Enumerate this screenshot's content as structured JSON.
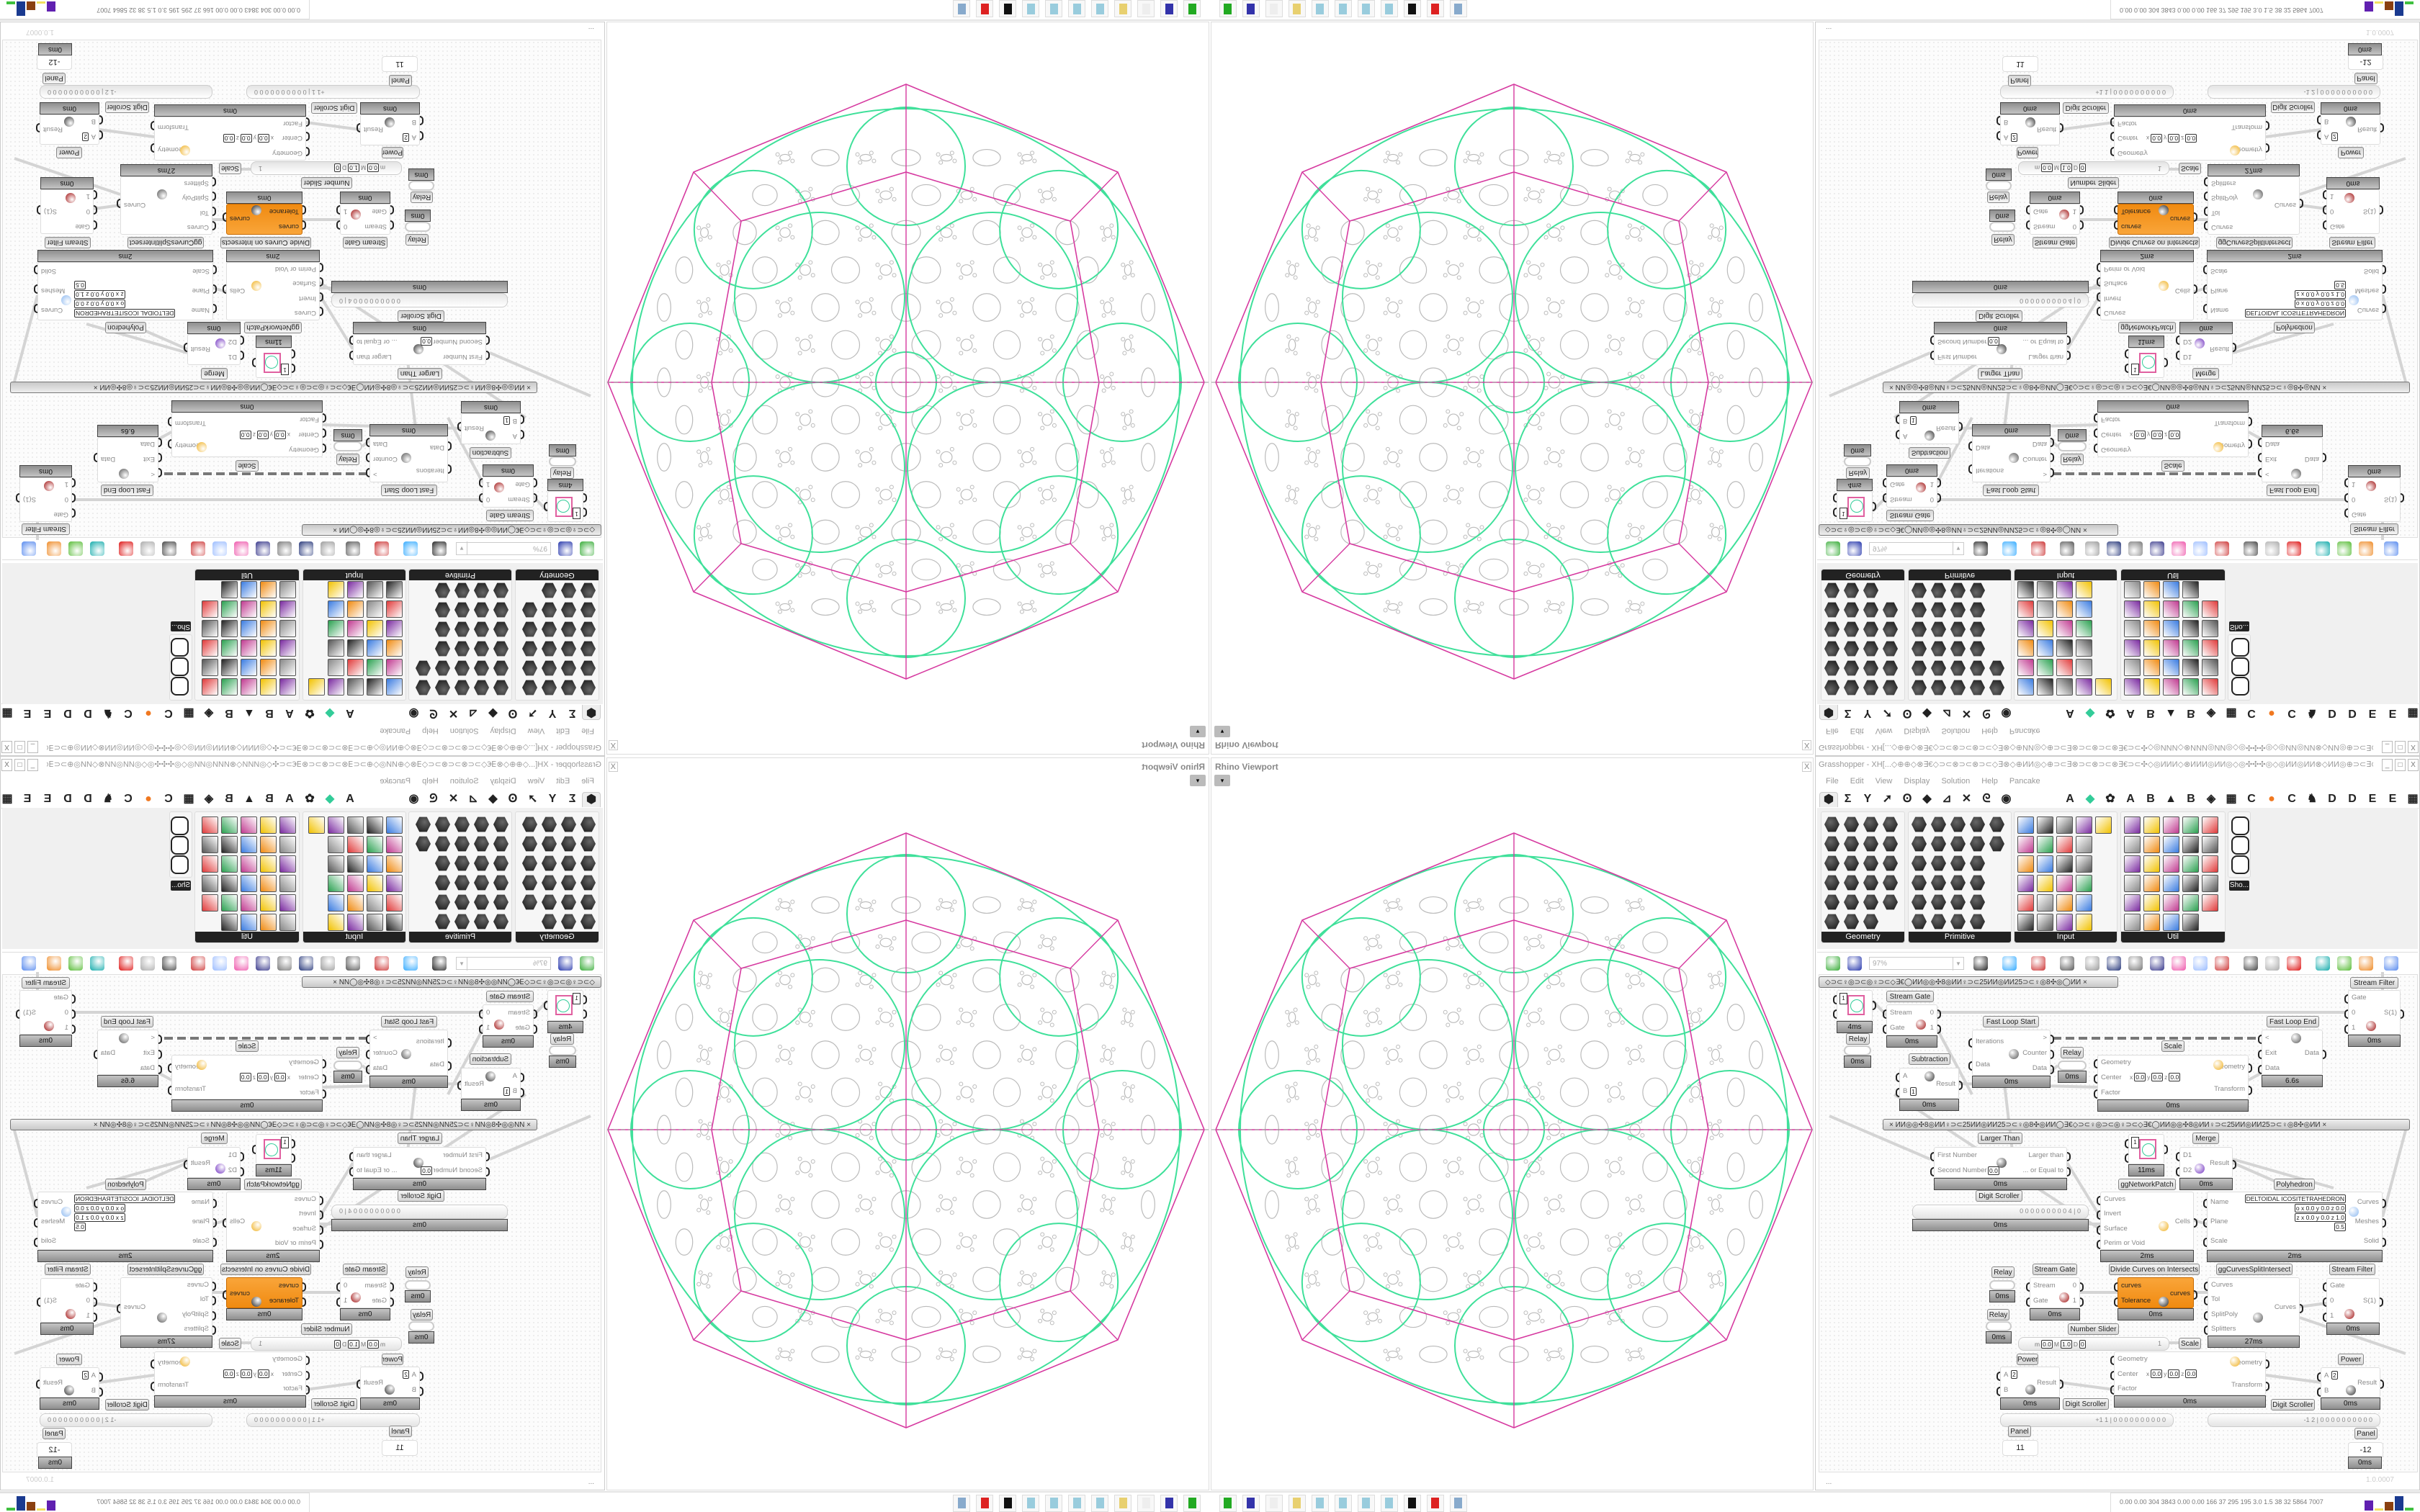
{
  "rhino_viewport": {
    "title": "Rhino Viewport",
    "close_label": "X",
    "dropdown_glyph": "▾",
    "colors": {
      "polyhedron_edges": "#d63aa0",
      "network_curves": "#3fe09a",
      "sphere_pattern": "#bbbbbb"
    }
  },
  "grasshopper": {
    "title": "Grasshopper - XH[...◇⊕⊕◇⊗∃€◇⊃⊂⊗⊃⊂⊗⊃⊂◇∃⊗◇⊕ИИ◎◇⊕⊃⊂∃⊗⊃⊂⊗⊃⊂⊗∃€⊃⊂✣◇◎ИИИ◇⊗ИИИ◎ИИ◎◇◎✣✣✣◎◇◎ИИ◎ИИ⊗◇ИИ◎⊕⊃⊂∃⊗⊃⊂⊗⊃⊂...",
    "window_buttons": [
      "_",
      "□",
      "X"
    ],
    "menu": [
      "File",
      "Edit",
      "View",
      "Display",
      "Solution",
      "Help",
      "Pancake"
    ],
    "component_tabs": [
      "⬢",
      "Σ",
      "Y",
      "➚",
      "Ꙩ",
      "◆",
      "⊿",
      "✕",
      "ᘓ",
      "◉",
      "A",
      "◆",
      "✿",
      "A",
      "B",
      "▲",
      "B",
      "◈",
      "▦",
      "C",
      "●",
      "C",
      "♞",
      "D",
      "D",
      "E",
      "E",
      "▦"
    ],
    "ribbon_panels": [
      {
        "label": "Geometry"
      },
      {
        "label": "Primitive"
      },
      {
        "label": "Input"
      },
      {
        "label": "Util"
      },
      {
        "label": "Sho..."
      }
    ],
    "toolbar": {
      "zoom": "97%",
      "icons": [
        "new-file",
        "save-file",
        "zoom-extents",
        "preview",
        "sketch",
        "bake",
        "email",
        "gha-export",
        "snapshot",
        "search",
        "package",
        "bulb",
        "wires",
        "cap",
        "link",
        "red-gem",
        "teal-shape",
        "green-shape",
        "orange-sphere",
        "blue-sphere"
      ]
    },
    "canvas": {
      "group_bars": [
        "◇⊃⊂♀◎⊃⊂◎♀⊃⊂◇∃€◯ИИ◎◎✣8◎ИИ♀⊃⊂25ИИ◎ИИ25⊃⊂♀◎8✣◎◯ИИ        ×",
        "×        ИИ◎◎✣8◎ИИ♀⊃⊂25ИИ◎ИИ25⊃⊂♀◎8✣◎ИИ◯∃€◇⊃⊂♀◎⊃⊂◎♀⊃⊂◇∃€◯ИИ◎◎✣8◎ИИ♀⊃⊂25ИИ◎ИИ25⊃⊂♀◎8✣◎ИИ        ×"
      ],
      "components": [
        {
          "title": "",
          "value": "1",
          "time": "4ms"
        },
        {
          "title": "Relay",
          "time": "0ms"
        },
        {
          "title": "Stream Gate",
          "inputs": [
            "Stream",
            "Gate"
          ],
          "outputs": [
            "0",
            "1"
          ],
          "time": "0ms"
        },
        {
          "title": "Fast Loop Start",
          "inputs": [
            "Iterations",
            "Data"
          ],
          "outputs": [
            ">",
            "Counter",
            "Data"
          ],
          "time": "0ms"
        },
        {
          "title": "Relay",
          "time": "0ms"
        },
        {
          "title": "Subtraction",
          "inputs": [
            "A",
            "B"
          ],
          "outputs": [
            "Result"
          ],
          "params": [
            "1"
          ],
          "time": "0ms"
        },
        {
          "title": "Scale",
          "inputs": [
            "Geometry",
            "Center",
            "Factor"
          ],
          "outputs": [
            "Geometry",
            "Transform"
          ],
          "params": [
            "x",
            "0.0",
            "y",
            "0.0",
            "z",
            "0.0"
          ],
          "time": "0ms"
        },
        {
          "title": "Fast Loop End",
          "inputs": [
            "<",
            "Exit",
            "Data"
          ],
          "outputs": [
            "Data"
          ],
          "time": "6.6s"
        },
        {
          "title": "Stream Filter",
          "inputs": [
            "Gate",
            "0",
            "1"
          ],
          "outputs": [
            "S(1)"
          ],
          "time": "0ms"
        },
        {
          "title": "Larger Than",
          "inputs": [
            "First Number",
            "Second Number"
          ],
          "outputs": [
            "Larger than",
            "... or Equal to"
          ],
          "params": [
            "0.0"
          ],
          "time": "0ms"
        },
        {
          "title": "",
          "value": "1",
          "time": "11ms"
        },
        {
          "title": "Merge",
          "inputs": [
            "D1",
            "D2"
          ],
          "outputs": [
            "Result"
          ],
          "time": "0ms"
        },
        {
          "title": "ggNetworkPatch",
          "inputs": [
            "Curves",
            "Invert",
            "Surface",
            "Perim or Void"
          ],
          "outputs": [
            "Cells"
          ],
          "time": "2ms"
        },
        {
          "title": "Polyhedron",
          "inputs": [
            "Name",
            "Plane",
            "Scale"
          ],
          "outputs": [
            "Curves",
            "Meshes",
            "Solid"
          ],
          "params": [
            "DELTOIDAL ICOSITETRAHEDRON",
            "o x 0.0 y 0.0 z 0.0",
            "z x 0.0 y 0.0 z 1.0",
            "0.5"
          ],
          "time": "2ms"
        },
        {
          "title": "Digit Scroller",
          "value": "0 0 0 0 0 0 0 0 0 4 | 0",
          "time": "0ms"
        },
        {
          "title": "Relay",
          "time": "0ms"
        },
        {
          "title": "Stream Gate",
          "inputs": [
            "Stream",
            "Gate"
          ],
          "outputs": [
            "0",
            "1"
          ],
          "time": "0ms"
        },
        {
          "title": "Divide Curves on Intersects",
          "inputs": [
            "curves",
            "Tolerance"
          ],
          "outputs": [
            "curves"
          ],
          "time": "0ms"
        },
        {
          "title": "ggCurvesSplitIntersect",
          "inputs": [
            "Curves",
            "Tol",
            "SplitPoly",
            "Splitters"
          ],
          "outputs": [
            "Curves"
          ],
          "time": "27ms"
        },
        {
          "title": "Stream Filter",
          "inputs": [
            "Gate",
            "0",
            "1"
          ],
          "outputs": [
            "S(1)"
          ],
          "time": "0ms"
        },
        {
          "title": "Relay",
          "time": "0ms"
        },
        {
          "title": "Number Slider",
          "value": "1",
          "params": [
            "m",
            "0.0",
            "M",
            "1.0",
            "D",
            "0"
          ]
        },
        {
          "title": "Scale",
          "inputs": [
            "Geometry",
            "Center",
            "Factor"
          ],
          "outputs": [
            "Geometry",
            "Transform"
          ],
          "params": [
            "x",
            "0.0",
            "y",
            "0.0",
            "z",
            "0.0"
          ],
          "time": "0ms"
        },
        {
          "title": "Power",
          "inputs": [
            "A",
            "B"
          ],
          "outputs": [
            "Result"
          ],
          "params": [
            "2"
          ],
          "time": "0ms"
        },
        {
          "title": "Power",
          "inputs": [
            "A",
            "B"
          ],
          "outputs": [
            "Result"
          ],
          "params": [
            "2"
          ],
          "time": "0ms"
        },
        {
          "title": "Digit Scroller",
          "value": "+1 1 | 0 0 0 0 0 0 0 0 0 0"
        },
        {
          "title": "Digit Scroller",
          "value": "-1 2 | 0 0 0 0 0 0 0 0 0 0"
        },
        {
          "title": "Panel",
          "value": "11"
        },
        {
          "title": "Panel",
          "value": "-12",
          "time": "0ms"
        }
      ]
    },
    "status": {
      "left": "...",
      "version": "1.0.0007"
    }
  },
  "taskbar": {
    "icons": [
      "app-green",
      "floppy-64",
      "blank",
      "folder",
      "notepad",
      "notepad",
      "notepad",
      "notepad",
      "inkscape",
      "red-app",
      "calculator"
    ],
    "perf_stats": "0.00 0.00 304 3843 0.00 0.00 166  37  295  195  3.0  1.5  38  32  5864 7007"
  }
}
